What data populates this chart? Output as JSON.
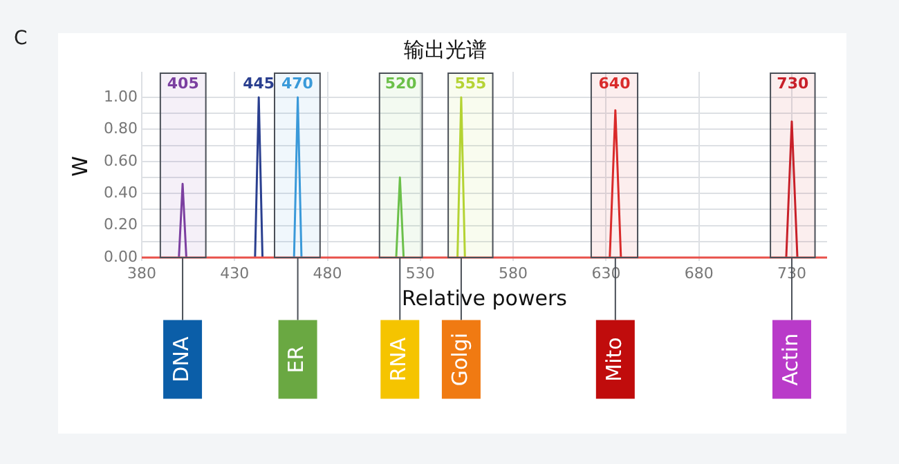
{
  "chart_data": {
    "type": "line",
    "title": "输出光谱",
    "xlabel": "Relative powers",
    "ylabel": "W",
    "xlim": [
      380,
      749
    ],
    "ylim": [
      -0.02,
      1.16
    ],
    "xticks": [
      380,
      430,
      480,
      530,
      580,
      630,
      680,
      730
    ],
    "yticks": [
      {
        "value": 0,
        "label": "0.00"
      },
      {
        "value": 0.1,
        "label": null
      },
      {
        "value": 0.2,
        "label": "0.20"
      },
      {
        "value": 0.3,
        "label": null
      },
      {
        "value": 0.4,
        "label": "0.40"
      },
      {
        "value": 0.5,
        "label": null
      },
      {
        "value": 0.6,
        "label": "0.60"
      },
      {
        "value": 0.7,
        "label": null
      },
      {
        "value": 0.8,
        "label": "0.80"
      },
      {
        "value": 0.9,
        "label": null
      },
      {
        "value": 1,
        "label": "1.00"
      }
    ],
    "bands": [
      {
        "axis": "x",
        "from": 390,
        "to": 414.5,
        "label": "405",
        "color": "#7b3fa0"
      },
      {
        "axis": "x",
        "from": 451.5,
        "to": 476,
        "label": "470",
        "color": "#3a9ad9"
      },
      {
        "axis": "x",
        "from": 508,
        "to": 531,
        "label": "520",
        "color": "#6cc04a"
      },
      {
        "axis": "x",
        "from": 545,
        "to": 569,
        "label": "555",
        "color": "#b5d334"
      },
      {
        "axis": "x",
        "from": 622,
        "to": 647,
        "label": "640",
        "color": "#d92b2b"
      },
      {
        "axis": "x",
        "from": 718.5,
        "to": 742.5,
        "label": "730",
        "color": "#c8202a"
      }
    ],
    "grid": true,
    "legend": false,
    "marker": "none",
    "line_style": "solid",
    "series": [
      {
        "color": "#e8504a",
        "x": [
          380,
          749
        ],
        "values": [
          0,
          0
        ]
      },
      {
        "color": "#7b3fa0",
        "x": [
          400,
          402,
          404
        ],
        "values": [
          0,
          0.46,
          0
        ]
      },
      {
        "color": "#2a3f8f",
        "x": [
          441,
          443,
          445
        ],
        "values": [
          0,
          1,
          0
        ]
      },
      {
        "color": "#3a9ad9",
        "x": [
          462,
          464,
          466
        ],
        "values": [
          0,
          1,
          0
        ]
      },
      {
        "color": "#6cc04a",
        "x": [
          517,
          519,
          521
        ],
        "values": [
          0,
          0.5,
          0
        ]
      },
      {
        "color": "#b5d334",
        "x": [
          550,
          552,
          554
        ],
        "values": [
          0,
          1,
          0
        ]
      },
      {
        "color": "#d92b2b",
        "x": [
          632,
          635,
          638
        ],
        "values": [
          0,
          0.92,
          0
        ]
      },
      {
        "color": "#c8202a",
        "x": [
          727,
          730,
          733
        ],
        "values": [
          0,
          0.85,
          0
        ]
      }
    ],
    "annotations": [
      "C",
      {
        "text": "445",
        "x": 443,
        "y": 1
      },
      {
        "text": "DNA",
        "x": 402,
        "y": 0
      },
      {
        "text": "ER",
        "x": 464,
        "y": 0
      },
      {
        "text": "RNA",
        "x": 519,
        "y": 0
      },
      {
        "text": "Golgi",
        "x": 552,
        "y": 0
      },
      {
        "text": "Mito",
        "x": 635,
        "y": 0
      },
      {
        "text": "Actin",
        "x": 730,
        "y": 0
      }
    ]
  }
}
